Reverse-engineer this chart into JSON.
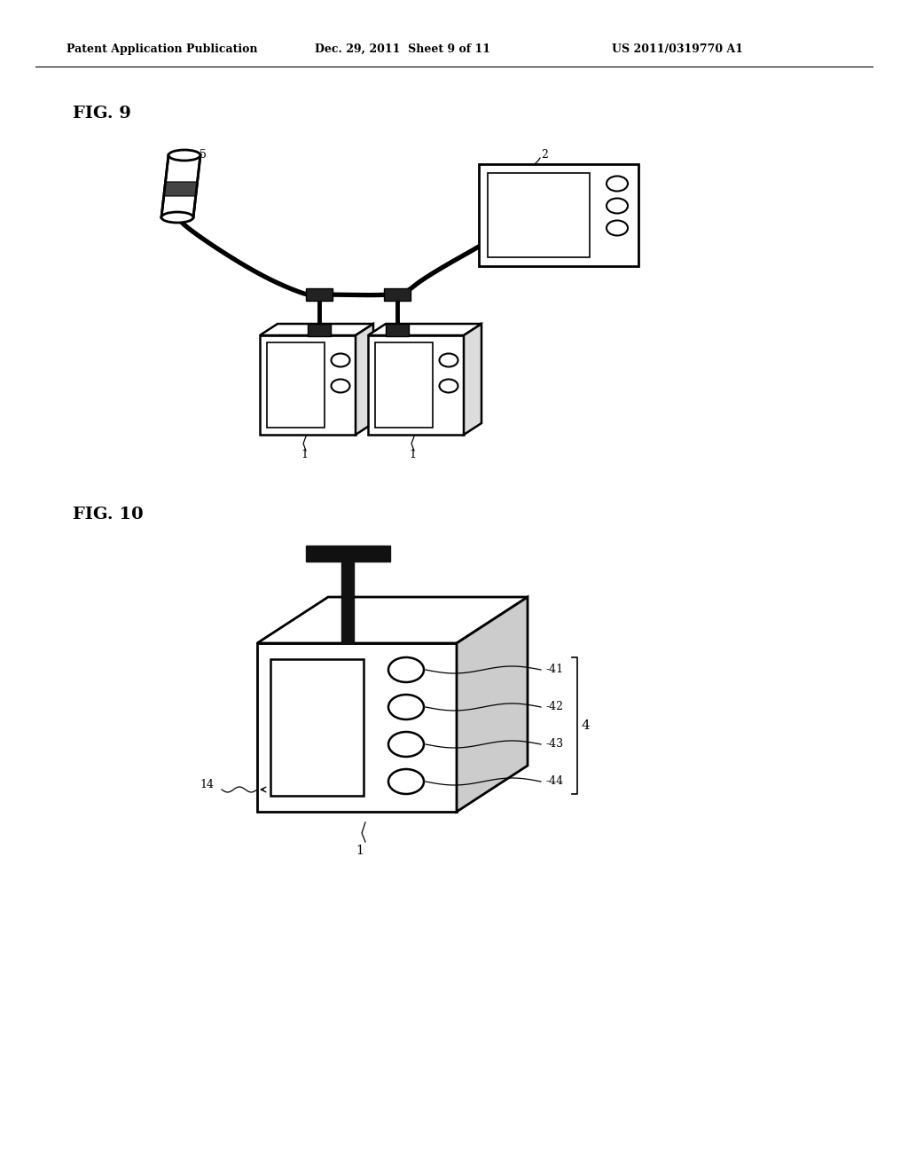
{
  "header_left": "Patent Application Publication",
  "header_mid": "Dec. 29, 2011  Sheet 9 of 11",
  "header_right": "US 2011/0319770 A1",
  "fig9_label": "FIG. 9",
  "fig10_label": "FIG. 10",
  "background_color": "#ffffff",
  "line_color": "#000000"
}
